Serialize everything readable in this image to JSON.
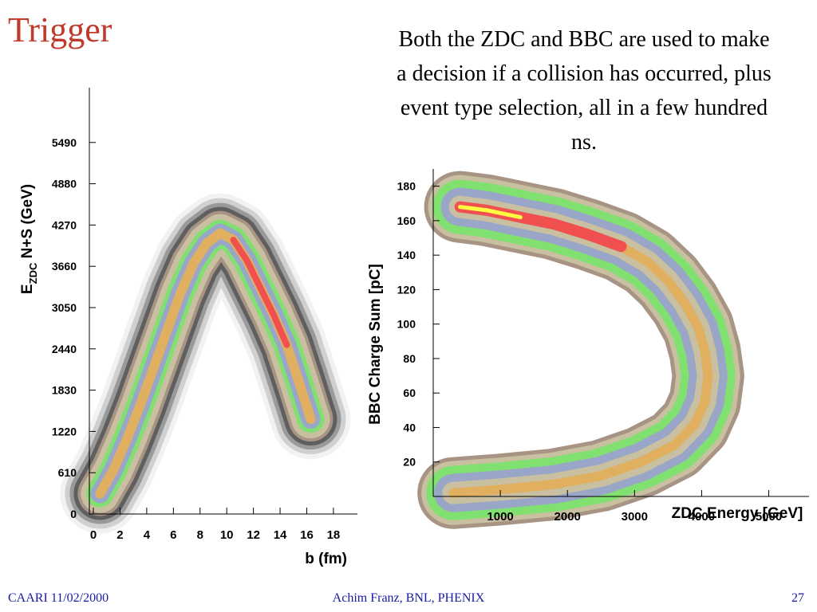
{
  "slide": {
    "title": "Trigger",
    "description": "Both the ZDC and BBC are used to make a decision if a collision has occurred, plus event type selection, all in a few hundred ns."
  },
  "footer": {
    "left": "CAARI 11/02/2000",
    "center": "Achim Franz, BNL, PHENIX",
    "page_number": "27"
  },
  "colors": {
    "title": "#c0392b",
    "footer": "#1a1aa6",
    "density_scale": [
      "#f2f2f2",
      "#d0d0d0",
      "#9a9a9a",
      "#5f5f5f",
      "#a89484",
      "#c8c0a0",
      "#80e070",
      "#9aa6c8",
      "#e0b060",
      "#f05050",
      "#ffff40"
    ]
  },
  "chart_data": [
    {
      "type": "heatmap",
      "xlabel": "b (fm)",
      "ylabel": "E_ZDC N+S (GeV)",
      "ylabel_main": "E",
      "ylabel_sub": "ZDC",
      "ylabel_rest": " N+S (GeV)",
      "x_ticks": [
        "0",
        "2",
        "4",
        "6",
        "8",
        "10",
        "12",
        "14",
        "16",
        "18"
      ],
      "y_ticks": [
        "0",
        "610",
        "1220",
        "1830",
        "2440",
        "3050",
        "3660",
        "4270",
        "4880",
        "5490"
      ],
      "xlim": [
        -0.3,
        19.8
      ],
      "ylim": [
        0,
        6300
      ],
      "ridge": {
        "b": [
          0.5,
          1.5,
          2.5,
          3.5,
          4.5,
          5.5,
          6.5,
          7.5,
          8.5,
          9.5,
          10.5,
          11.5,
          12.5,
          13.5,
          14.5,
          15.5,
          16.3
        ],
        "E": [
          300,
          650,
          1100,
          1600,
          2150,
          2700,
          3250,
          3700,
          4000,
          4150,
          4050,
          3750,
          3350,
          2950,
          2500,
          1900,
          1400
        ]
      }
    },
    {
      "type": "heatmap",
      "xlabel": "ZDC Energy [GeV]",
      "ylabel": "BBC Charge Sum [pC]",
      "x_ticks": [
        "1000",
        "2000",
        "3000",
        "4000",
        "5000"
      ],
      "x_tick_values": [
        1000,
        2000,
        3000,
        4000,
        5000
      ],
      "y_ticks": [
        "20",
        "40",
        "60",
        "80",
        "100",
        "120",
        "140",
        "160",
        "180"
      ],
      "y_tick_values": [
        20,
        40,
        60,
        80,
        100,
        120,
        140,
        160,
        180
      ],
      "xlim": [
        0,
        5600
      ],
      "ylim": [
        0,
        190
      ],
      "ridge": {
        "zdc": [
          400,
          800,
          1300,
          1800,
          2300,
          2800,
          3200,
          3500,
          3750,
          3950,
          4050,
          4100,
          4050,
          3900,
          3600,
          3100,
          2500,
          1800,
          1000,
          300
        ],
        "bbc": [
          168,
          166,
          162,
          158,
          152,
          145,
          136,
          125,
          112,
          98,
          84,
          70,
          55,
          42,
          30,
          20,
          12,
          7,
          4,
          2
        ]
      }
    }
  ]
}
